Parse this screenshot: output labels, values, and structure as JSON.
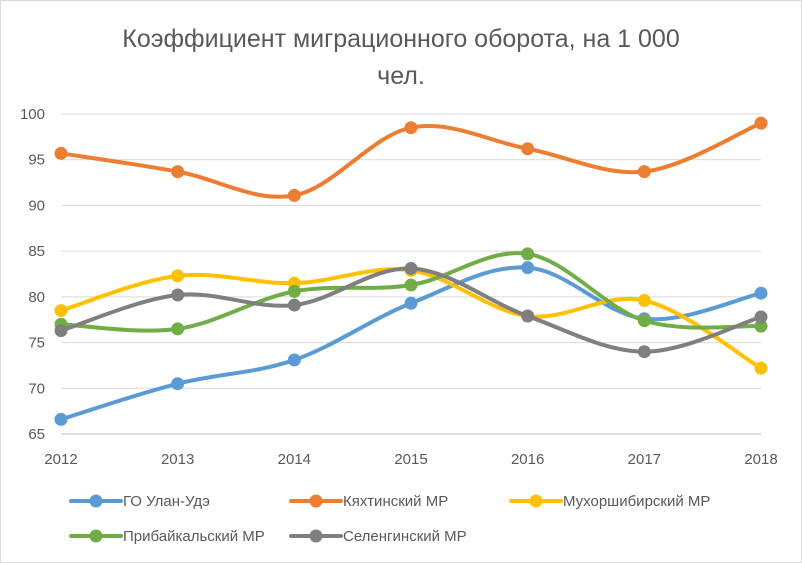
{
  "chart_data": {
    "type": "line",
    "title": "Коэффициент миграционного оборота, на 1 000 чел.",
    "x": [
      "2012",
      "2013",
      "2014",
      "2015",
      "2016",
      "2017",
      "2018"
    ],
    "ylim": [
      65,
      100
    ],
    "yticks": [
      65,
      70,
      75,
      80,
      85,
      90,
      95,
      100
    ],
    "grid": "horizontal",
    "smooth": true,
    "legend_position": "bottom",
    "series": [
      {
        "name": "ГО Улан-Удэ",
        "color": "#5b9bd5",
        "values": [
          66.6,
          70.5,
          73.1,
          79.3,
          83.2,
          77.6,
          80.4
        ]
      },
      {
        "name": "Кяхтинский МР",
        "color": "#ed7d31",
        "values": [
          95.7,
          93.7,
          91.1,
          98.5,
          96.2,
          93.7,
          99.0
        ]
      },
      {
        "name": "Мухоршибирский МР",
        "color": "#ffc000",
        "values": [
          78.5,
          82.3,
          81.5,
          82.9,
          77.9,
          79.6,
          72.2
        ]
      },
      {
        "name": "Прибайкальский МР",
        "color": "#70ad47",
        "values": [
          77.0,
          76.5,
          80.6,
          81.3,
          84.7,
          77.4,
          76.8
        ]
      },
      {
        "name": "Селенгинский МР",
        "color": "#7f7f7f",
        "values": [
          76.3,
          80.2,
          79.1,
          83.1,
          77.9,
          74.0,
          77.8
        ]
      }
    ]
  }
}
